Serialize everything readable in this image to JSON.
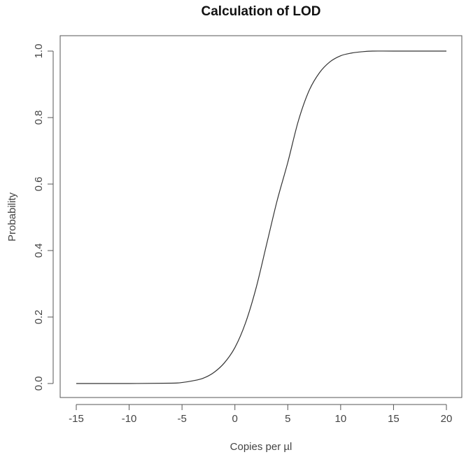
{
  "chart_data": {
    "type": "line",
    "title": "Calculation of LOD",
    "xlabel": "Copies per µl",
    "ylabel": "Probability",
    "xlim": [
      -15,
      20
    ],
    "ylim": [
      0,
      1
    ],
    "x_ticks": [
      "-15",
      "-10",
      "-5",
      "0",
      "5",
      "10",
      "15",
      "20"
    ],
    "y_ticks": [
      "0.0",
      "0.2",
      "0.4",
      "0.6",
      "0.8",
      "1.0"
    ],
    "grid": false,
    "legend": "none",
    "line_color": "#333333",
    "series": [
      {
        "x": [
          -15,
          -10,
          -6,
          -5,
          -4,
          -3,
          -2,
          -1,
          0,
          1,
          2,
          3,
          4,
          5,
          6,
          7,
          8,
          9,
          10,
          11,
          12,
          13,
          15,
          20
        ],
        "values": [
          0.0,
          0.0,
          0.001,
          0.003,
          0.008,
          0.016,
          0.033,
          0.062,
          0.108,
          0.182,
          0.287,
          0.419,
          0.551,
          0.665,
          0.79,
          0.88,
          0.935,
          0.968,
          0.986,
          0.994,
          0.998,
          1.0,
          1.0,
          1.0
        ]
      }
    ]
  }
}
